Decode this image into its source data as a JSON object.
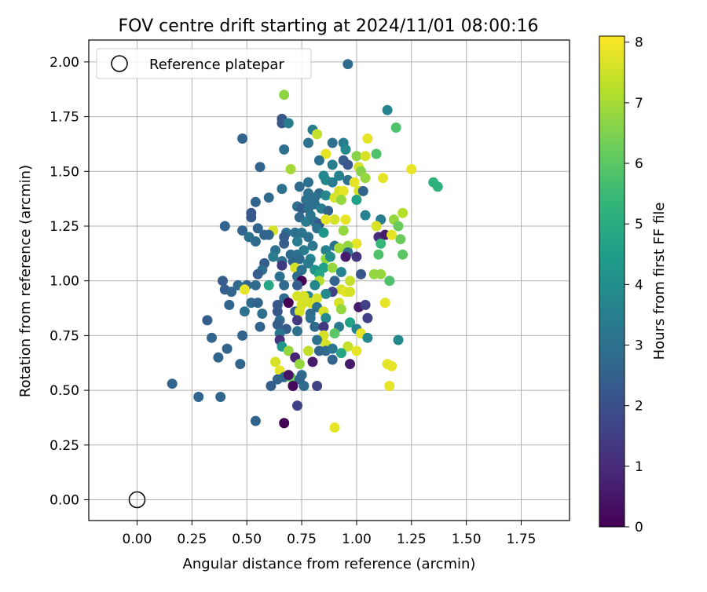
{
  "chart_data": {
    "type": "scatter",
    "title": "FOV centre drift starting at 2024/11/01 08:00:16",
    "xlabel": "Angular distance from reference (arcmin)",
    "ylabel": "Rotation from reference (arcmin)",
    "xlim": [
      -0.22,
      1.97
    ],
    "ylim": [
      -0.095,
      2.1
    ],
    "xticks": [
      "0.00",
      "0.25",
      "0.50",
      "0.75",
      "1.00",
      "1.25",
      "1.50",
      "1.75"
    ],
    "yticks": [
      "0.00",
      "0.25",
      "0.50",
      "0.75",
      "1.00",
      "1.25",
      "1.50",
      "1.75",
      "2.00"
    ],
    "grid": true,
    "legend": {
      "placement": "top-left",
      "label": "Reference platepar"
    },
    "reference_point": {
      "x": 0.0,
      "y": 0.0
    },
    "colorbar": {
      "label": "Hours from first FF file",
      "min": 0,
      "max": 8.1,
      "ticks": [
        "0",
        "1",
        "2",
        "3",
        "4",
        "5",
        "6",
        "7",
        "8"
      ],
      "colormap": [
        "#440154",
        "#482878",
        "#3e4989",
        "#31688e",
        "#26828e",
        "#1f9e89",
        "#35b779",
        "#6ece58",
        "#b5de2b",
        "#fde725"
      ]
    },
    "points": [
      [
        0.96,
        1.99,
        2.8
      ],
      [
        0.67,
        1.85,
        6.7
      ],
      [
        1.14,
        1.78,
        3.6
      ],
      [
        0.66,
        1.74,
        2.2
      ],
      [
        0.66,
        1.72,
        2.2
      ],
      [
        0.69,
        1.72,
        3.4
      ],
      [
        1.18,
        1.7,
        5.8
      ],
      [
        0.48,
        1.65,
        2.6
      ],
      [
        0.8,
        1.69,
        3.4
      ],
      [
        0.82,
        1.67,
        7.4
      ],
      [
        1.05,
        1.65,
        7.8
      ],
      [
        0.78,
        1.63,
        3.0
      ],
      [
        0.89,
        1.63,
        3.0
      ],
      [
        0.94,
        1.63,
        3.4
      ],
      [
        0.67,
        1.6,
        3.0
      ],
      [
        0.95,
        1.6,
        3.8
      ],
      [
        1.09,
        1.58,
        5.8
      ],
      [
        0.86,
        1.58,
        7.8
      ],
      [
        1.0,
        1.57,
        6.6
      ],
      [
        1.04,
        1.57,
        7.6
      ],
      [
        0.83,
        1.55,
        3.0
      ],
      [
        0.94,
        1.55,
        2.4
      ],
      [
        0.89,
        1.53,
        3.4
      ],
      [
        0.96,
        1.53,
        2.2
      ],
      [
        1.01,
        1.52,
        7.6
      ],
      [
        0.56,
        1.52,
        2.6
      ],
      [
        0.7,
        1.51,
        7.0
      ],
      [
        1.25,
        1.51,
        7.8
      ],
      [
        0.85,
        1.48,
        3.8
      ],
      [
        0.92,
        1.48,
        3.6
      ],
      [
        1.02,
        1.5,
        6.6
      ],
      [
        0.86,
        1.46,
        3.8
      ],
      [
        0.89,
        1.45,
        3.4
      ],
      [
        0.96,
        1.46,
        3.0
      ],
      [
        0.74,
        1.43,
        2.8
      ],
      [
        0.78,
        1.45,
        3.0
      ],
      [
        0.99,
        1.45,
        7.8
      ],
      [
        1.04,
        1.47,
        6.8
      ],
      [
        1.12,
        1.47,
        7.8
      ],
      [
        1.35,
        1.45,
        5.2
      ],
      [
        1.37,
        1.43,
        5.2
      ],
      [
        0.66,
        1.42,
        3.0
      ],
      [
        0.78,
        1.4,
        3.0
      ],
      [
        0.83,
        1.4,
        2.8
      ],
      [
        0.86,
        1.39,
        3.8
      ],
      [
        0.92,
        1.41,
        7.6
      ],
      [
        0.94,
        1.41,
        7.8
      ],
      [
        1.01,
        1.41,
        7.6
      ],
      [
        1.03,
        1.41,
        2.6
      ],
      [
        0.6,
        1.38,
        2.8
      ],
      [
        0.77,
        1.37,
        3.0
      ],
      [
        0.8,
        1.36,
        3.0
      ],
      [
        0.81,
        1.38,
        3.0
      ],
      [
        0.9,
        1.38,
        7.6
      ],
      [
        0.93,
        1.37,
        6.8
      ],
      [
        1.0,
        1.37,
        4.6
      ],
      [
        0.54,
        1.36,
        2.6
      ],
      [
        0.73,
        1.34,
        3.0
      ],
      [
        0.75,
        1.33,
        2.4
      ],
      [
        0.78,
        1.33,
        3.0
      ],
      [
        0.81,
        1.35,
        3.0
      ],
      [
        0.84,
        1.33,
        3.4
      ],
      [
        0.87,
        1.32,
        2.6
      ],
      [
        0.79,
        1.3,
        3.2
      ],
      [
        0.52,
        1.31,
        2.2
      ],
      [
        0.52,
        1.29,
        2.2
      ],
      [
        0.74,
        1.29,
        2.8
      ],
      [
        1.04,
        1.3,
        3.6
      ],
      [
        0.77,
        1.27,
        3.4
      ],
      [
        0.81,
        1.27,
        3.0
      ],
      [
        0.83,
        1.26,
        2.2
      ],
      [
        0.9,
        1.28,
        7.6
      ],
      [
        0.86,
        1.28,
        7.8
      ],
      [
        1.11,
        1.28,
        3.4
      ],
      [
        0.95,
        1.28,
        7.8
      ],
      [
        1.17,
        1.28,
        6.8
      ],
      [
        1.21,
        1.31,
        7.2
      ],
      [
        0.4,
        1.25,
        2.6
      ],
      [
        0.55,
        1.24,
        2.6
      ],
      [
        0.48,
        1.23,
        2.6
      ],
      [
        0.82,
        1.24,
        3.0
      ],
      [
        0.85,
        1.22,
        4.2
      ],
      [
        0.94,
        1.23,
        6.8
      ],
      [
        1.09,
        1.25,
        7.6
      ],
      [
        1.19,
        1.25,
        6.2
      ],
      [
        0.62,
        1.23,
        7.6
      ],
      [
        0.68,
        1.22,
        3.0
      ],
      [
        0.72,
        1.22,
        3.0
      ],
      [
        0.75,
        1.22,
        3.2
      ],
      [
        0.58,
        1.21,
        2.6
      ],
      [
        0.6,
        1.21,
        2.6
      ],
      [
        0.67,
        1.2,
        2.4
      ],
      [
        0.78,
        1.2,
        3.0
      ],
      [
        1.1,
        1.2,
        1.0
      ],
      [
        1.13,
        1.21,
        0.6
      ],
      [
        1.16,
        1.21,
        7.8
      ],
      [
        1.2,
        1.19,
        6.2
      ],
      [
        0.51,
        1.2,
        3.0
      ],
      [
        0.54,
        1.18,
        2.8
      ],
      [
        0.67,
        1.17,
        2.4
      ],
      [
        0.73,
        1.18,
        3.4
      ],
      [
        0.8,
        1.16,
        3.2
      ],
      [
        0.9,
        1.16,
        3.0
      ],
      [
        1.0,
        1.17,
        7.8
      ],
      [
        1.11,
        1.17,
        5.4
      ],
      [
        0.92,
        1.15,
        7.0
      ],
      [
        0.96,
        1.16,
        6.8
      ],
      [
        0.86,
        1.14,
        3.6
      ],
      [
        0.63,
        1.14,
        3.0
      ],
      [
        0.7,
        1.12,
        2.8
      ],
      [
        0.73,
        1.12,
        3.0
      ],
      [
        0.76,
        1.14,
        3.4
      ],
      [
        0.96,
        1.13,
        3.0
      ],
      [
        0.62,
        1.11,
        3.4
      ],
      [
        0.86,
        1.1,
        6.8
      ],
      [
        1.0,
        1.11,
        1.2
      ],
      [
        0.66,
        1.09,
        3.0
      ],
      [
        0.71,
        1.09,
        2.6
      ],
      [
        0.74,
        1.1,
        2.8
      ],
      [
        0.79,
        1.1,
        3.6
      ],
      [
        0.88,
        1.11,
        4.0
      ],
      [
        0.95,
        1.11,
        0.6
      ],
      [
        1.1,
        1.12,
        5.8
      ],
      [
        1.21,
        1.12,
        6.0
      ],
      [
        0.58,
        1.08,
        2.4
      ],
      [
        0.66,
        1.07,
        1.4
      ],
      [
        0.78,
        1.08,
        3.4
      ],
      [
        0.85,
        1.06,
        4.6
      ],
      [
        0.89,
        1.06,
        6.8
      ],
      [
        0.81,
        1.05,
        4.2
      ],
      [
        0.57,
        1.05,
        3.0
      ],
      [
        0.72,
        1.06,
        7.6
      ],
      [
        0.75,
        1.05,
        3.0
      ],
      [
        0.83,
        1.03,
        4.8
      ],
      [
        0.93,
        1.04,
        3.6
      ],
      [
        0.55,
        1.03,
        2.4
      ],
      [
        0.73,
        1.02,
        2.8
      ],
      [
        1.02,
        1.03,
        2.2
      ],
      [
        1.08,
        1.03,
        6.8
      ],
      [
        1.11,
        1.03,
        6.8
      ],
      [
        0.39,
        1.0,
        2.4
      ],
      [
        0.65,
        1.02,
        3.0
      ],
      [
        0.75,
        1.0,
        0.0
      ],
      [
        0.83,
        1.0,
        7.2
      ],
      [
        0.9,
        1.0,
        2.6
      ],
      [
        0.97,
        1.0,
        7.4
      ],
      [
        1.15,
        1.0,
        5.8
      ],
      [
        0.5,
        0.98,
        2.6
      ],
      [
        0.46,
        0.98,
        2.8
      ],
      [
        0.54,
        0.98,
        2.8
      ],
      [
        0.6,
        0.98,
        4.8
      ],
      [
        0.67,
        0.98,
        2.8
      ],
      [
        0.73,
        0.98,
        2.4
      ],
      [
        0.81,
        0.98,
        3.8
      ],
      [
        0.4,
        0.96,
        2.4
      ],
      [
        0.49,
        0.96,
        7.8
      ],
      [
        0.93,
        0.96,
        7.6
      ],
      [
        0.43,
        0.95,
        2.6
      ],
      [
        0.89,
        0.95,
        1.6
      ],
      [
        0.78,
        0.93,
        3.8
      ],
      [
        0.86,
        0.94,
        3.8
      ],
      [
        0.95,
        0.95,
        7.8
      ],
      [
        0.67,
        0.92,
        2.8
      ],
      [
        0.73,
        0.93,
        7.6
      ],
      [
        0.76,
        0.93,
        7.6
      ],
      [
        0.82,
        0.92,
        7.6
      ],
      [
        0.97,
        0.95,
        7.6
      ],
      [
        0.42,
        0.89,
        2.6
      ],
      [
        0.52,
        0.9,
        2.8
      ],
      [
        0.55,
        0.9,
        2.6
      ],
      [
        0.64,
        0.89,
        2.2
      ],
      [
        0.69,
        0.9,
        0.0
      ],
      [
        0.75,
        0.89,
        7.6
      ],
      [
        0.79,
        0.9,
        7.6
      ],
      [
        0.82,
        0.88,
        3.0
      ],
      [
        0.92,
        0.9,
        7.6
      ],
      [
        1.01,
        0.88,
        0.6
      ],
      [
        1.04,
        0.89,
        1.6
      ],
      [
        1.13,
        0.9,
        7.8
      ],
      [
        0.49,
        0.86,
        3.0
      ],
      [
        0.57,
        0.85,
        3.0
      ],
      [
        0.64,
        0.86,
        2.2
      ],
      [
        0.72,
        0.86,
        2.4
      ],
      [
        0.74,
        0.86,
        7.6
      ],
      [
        0.79,
        0.85,
        2.8
      ],
      [
        0.85,
        0.86,
        7.6
      ],
      [
        0.93,
        0.87,
        6.8
      ],
      [
        0.65,
        0.82,
        2.8
      ],
      [
        0.73,
        0.82,
        1.4
      ],
      [
        0.79,
        0.83,
        3.0
      ],
      [
        0.86,
        0.83,
        3.8
      ],
      [
        1.05,
        0.83,
        1.6
      ],
      [
        0.32,
        0.82,
        2.4
      ],
      [
        0.56,
        0.79,
        2.6
      ],
      [
        0.64,
        0.8,
        2.4
      ],
      [
        0.68,
        0.78,
        2.4
      ],
      [
        0.81,
        0.79,
        2.8
      ],
      [
        0.85,
        0.79,
        1.4
      ],
      [
        0.92,
        0.79,
        3.4
      ],
      [
        0.97,
        0.81,
        4.6
      ],
      [
        1.0,
        0.78,
        3.6
      ],
      [
        0.34,
        0.74,
        2.6
      ],
      [
        0.48,
        0.75,
        2.6
      ],
      [
        0.65,
        0.76,
        3.2
      ],
      [
        0.73,
        0.77,
        3.0
      ],
      [
        0.85,
        0.75,
        7.6
      ],
      [
        0.9,
        0.76,
        6.0
      ],
      [
        1.02,
        0.76,
        7.8
      ],
      [
        1.05,
        0.74,
        3.8
      ],
      [
        1.19,
        0.73,
        3.8
      ],
      [
        0.65,
        0.73,
        1.2
      ],
      [
        0.82,
        0.73,
        3.0
      ],
      [
        0.86,
        0.71,
        7.6
      ],
      [
        0.96,
        0.7,
        7.4
      ],
      [
        0.41,
        0.69,
        2.6
      ],
      [
        0.66,
        0.7,
        4.2
      ],
      [
        0.86,
        0.68,
        2.8
      ],
      [
        0.89,
        0.69,
        3.2
      ],
      [
        1.0,
        0.68,
        7.8
      ],
      [
        0.69,
        0.68,
        6.8
      ],
      [
        0.78,
        0.68,
        7.4
      ],
      [
        0.83,
        0.68,
        2.6
      ],
      [
        0.72,
        0.65,
        0.8
      ],
      [
        0.89,
        0.64,
        2.6
      ],
      [
        0.93,
        0.67,
        4.8
      ],
      [
        0.37,
        0.65,
        2.6
      ],
      [
        0.47,
        0.62,
        2.6
      ],
      [
        0.63,
        0.63,
        7.6
      ],
      [
        0.74,
        0.62,
        6.8
      ],
      [
        0.8,
        0.63,
        0.6
      ],
      [
        0.97,
        0.62,
        0.6
      ],
      [
        1.14,
        0.62,
        7.8
      ],
      [
        1.16,
        0.61,
        7.8
      ],
      [
        0.65,
        0.59,
        7.8
      ],
      [
        0.67,
        0.56,
        2.8
      ],
      [
        0.7,
        0.56,
        6.2
      ],
      [
        0.75,
        0.57,
        2.8
      ],
      [
        0.64,
        0.55,
        2.6
      ],
      [
        0.69,
        0.57,
        0.4
      ],
      [
        0.74,
        0.55,
        2.6
      ],
      [
        0.61,
        0.52,
        2.4
      ],
      [
        0.71,
        0.52,
        0.2
      ],
      [
        0.76,
        0.52,
        2.8
      ],
      [
        0.82,
        0.52,
        1.6
      ],
      [
        1.15,
        0.52,
        7.8
      ],
      [
        0.16,
        0.53,
        2.6
      ],
      [
        0.28,
        0.47,
        2.6
      ],
      [
        0.38,
        0.47,
        2.6
      ],
      [
        0.73,
        0.43,
        1.6
      ],
      [
        0.54,
        0.36,
        2.6
      ],
      [
        0.67,
        0.35,
        0.0
      ],
      [
        0.9,
        0.33,
        7.8
      ]
    ]
  }
}
